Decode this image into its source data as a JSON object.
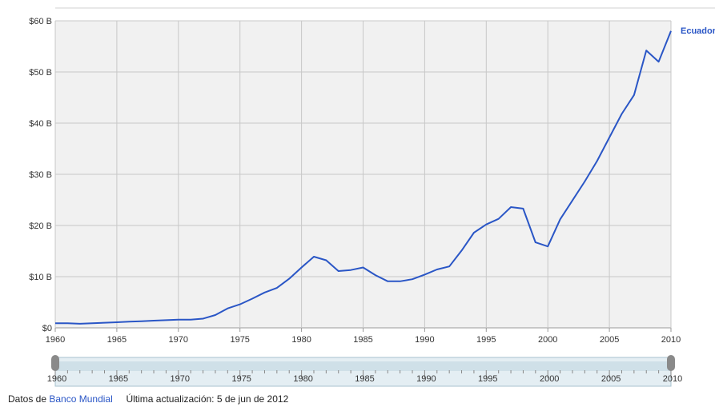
{
  "chart_data": {
    "type": "line",
    "title": "",
    "xlabel": "",
    "ylabel": "",
    "xlim": [
      1960,
      2010
    ],
    "ylim": [
      0,
      60
    ],
    "grid": true,
    "x_ticks": [
      "1960",
      "1965",
      "1970",
      "1975",
      "1980",
      "1985",
      "1990",
      "1995",
      "2000",
      "2005",
      "2010"
    ],
    "y_ticks": [
      "$0",
      "$10 B",
      "$20 B",
      "$30 B",
      "$40 B",
      "$50 B",
      "$60 B"
    ],
    "series": [
      {
        "name": "Ecuador",
        "color": "#2a56c6",
        "x": [
          1960,
          1961,
          1962,
          1963,
          1964,
          1965,
          1966,
          1967,
          1968,
          1969,
          1970,
          1971,
          1972,
          1973,
          1974,
          1975,
          1976,
          1977,
          1978,
          1979,
          1980,
          1981,
          1982,
          1983,
          1984,
          1985,
          1986,
          1987,
          1988,
          1989,
          1990,
          1991,
          1992,
          1993,
          1994,
          1995,
          1996,
          1997,
          1998,
          1999,
          2000,
          2001,
          2002,
          2003,
          2004,
          2005,
          2006,
          2007,
          2008,
          2009,
          2010
        ],
        "values": [
          0.9,
          0.9,
          0.8,
          0.9,
          1.0,
          1.1,
          1.2,
          1.3,
          1.4,
          1.5,
          1.6,
          1.6,
          1.8,
          2.5,
          3.8,
          4.6,
          5.7,
          6.9,
          7.8,
          9.6,
          11.8,
          13.9,
          13.2,
          11.1,
          11.3,
          11.8,
          10.3,
          9.1,
          9.1,
          9.5,
          10.4,
          11.4,
          12.0,
          15.1,
          18.6,
          20.2,
          21.3,
          23.6,
          23.3,
          16.7,
          15.9,
          21.2,
          24.9,
          28.6,
          32.6,
          37.2,
          41.8,
          45.5,
          54.2,
          52.0,
          58.0
        ]
      }
    ],
    "navigator": {
      "ticks": [
        "1960",
        "1965",
        "1970",
        "1975",
        "1980",
        "1985",
        "1990",
        "1995",
        "2000",
        "2005",
        "2010"
      ]
    }
  },
  "footer": {
    "source_prefix": "Datos de",
    "source_link": "Banco Mundial",
    "updated": "Última actualización: 5 de jun de 2012"
  }
}
